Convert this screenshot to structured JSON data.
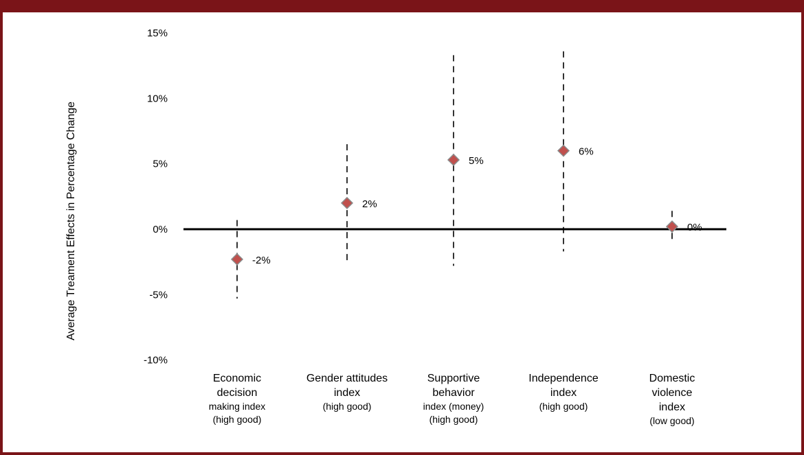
{
  "chart_data": {
    "type": "scatter",
    "title": "",
    "ylabel": "Average Treament Effects in Percentage Change",
    "xlabel": "",
    "ylim": [
      -10,
      15
    ],
    "yticks": [
      15,
      10,
      5,
      0,
      -5,
      -10
    ],
    "ytick_labels": [
      "15%",
      "10%",
      "5%",
      "0%",
      "-5%",
      "-10%"
    ],
    "grid": false,
    "legend": "none",
    "categories": [
      {
        "lines": [
          "Economic",
          "decision"
        ],
        "sublines": [
          "making index",
          "(high good)"
        ]
      },
      {
        "lines": [
          "Gender attitudes",
          "index"
        ],
        "sublines": [
          "(high good)"
        ]
      },
      {
        "lines": [
          "Supportive",
          "behavior"
        ],
        "sublines": [
          "index (money)",
          "(high good)"
        ]
      },
      {
        "lines": [
          "Independence",
          "index"
        ],
        "sublines": [
          "(high good)"
        ]
      },
      {
        "lines": [
          "Domestic",
          "violence",
          "index"
        ],
        "sublines": [
          "(low good)"
        ]
      }
    ],
    "points": [
      {
        "value": -2.3,
        "ci_low": -5.3,
        "ci_high": 0.7,
        "label": "-2%"
      },
      {
        "value": 2.0,
        "ci_low": -2.4,
        "ci_high": 6.5,
        "label": "2%"
      },
      {
        "value": 5.3,
        "ci_low": -2.8,
        "ci_high": 13.3,
        "label": "5%"
      },
      {
        "value": 6.0,
        "ci_low": -1.7,
        "ci_high": 13.6,
        "label": "6%"
      },
      {
        "value": 0.2,
        "ci_low": -0.9,
        "ci_high": 1.4,
        "label": "0%"
      }
    ],
    "colors": {
      "marker_fill": "#c0504d",
      "marker_stroke": "#8a8a8a",
      "zero_line": "#000000",
      "border": "#7a1418"
    }
  }
}
